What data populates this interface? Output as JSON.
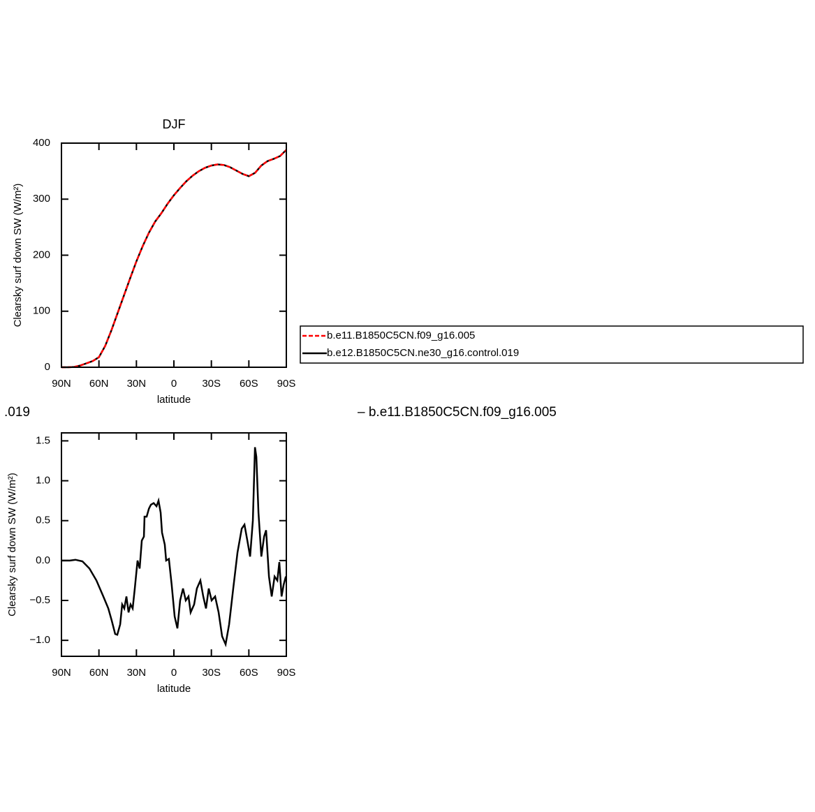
{
  "chart_data": [
    {
      "type": "line",
      "title": "DJF",
      "xlabel": "latitude",
      "ylabel": "Clearsky surf down SW (W/m²)",
      "x": [
        90,
        85,
        80,
        75,
        70,
        65,
        60,
        55,
        50,
        45,
        40,
        35,
        30,
        25,
        20,
        15,
        10,
        5,
        0,
        -5,
        -10,
        -15,
        -20,
        -25,
        -30,
        -35,
        -40,
        -45,
        -50,
        -55,
        -60,
        -65,
        -70,
        -75,
        -80,
        -85,
        -90
      ],
      "series": [
        {
          "name": "b.e12.B1850C5CN.ne30_g16.control.019",
          "color": "#000000",
          "line_style": "solid",
          "values": [
            0,
            0,
            0.5,
            3,
            7,
            11,
            18,
            38,
            66,
            97,
            128,
            159,
            189,
            216,
            240,
            260,
            275,
            292,
            307,
            320,
            332,
            342,
            350,
            356,
            360,
            362,
            361,
            357,
            351,
            345,
            341,
            347,
            360,
            368,
            372,
            377,
            388
          ]
        },
        {
          "name": "b.e11.B1850C5CN.f09_g16.005",
          "color": "#ff0000",
          "line_style": "dashed",
          "values": [
            0,
            0,
            0.5,
            3,
            7,
            11,
            18,
            38,
            66,
            97,
            128,
            159,
            189,
            216,
            240,
            260,
            275,
            292,
            307,
            320,
            332,
            342,
            350,
            356,
            360,
            362,
            361,
            357,
            351,
            345,
            341,
            347,
            360,
            368,
            372,
            377,
            388
          ]
        }
      ],
      "xlim": [
        90,
        -90
      ],
      "xticks": [
        {
          "value": 90,
          "label": "90N"
        },
        {
          "value": 60,
          "label": "60N"
        },
        {
          "value": 30,
          "label": "30N"
        },
        0,
        {
          "value": -30,
          "label": "30S"
        },
        {
          "value": -60,
          "label": "60S"
        },
        {
          "value": -90,
          "label": "90S"
        }
      ],
      "ylim": [
        0,
        400
      ],
      "yticks": [
        0,
        100,
        200,
        300,
        400
      ]
    },
    {
      "type": "line",
      "xlabel": "latitude",
      "ylabel": "Clearsky surf down SW (W/m²)",
      "x": [
        90,
        83.3,
        78.8,
        73.2,
        67.6,
        62,
        56.5,
        52.5,
        49.8,
        47,
        45.3,
        43,
        41.4,
        39.7,
        38,
        36.3,
        34.7,
        33,
        31.3,
        29.1,
        27.4,
        25.7,
        24,
        23.5,
        21.8,
        20,
        18.4,
        16.2,
        13.9,
        12.3,
        10.6,
        9.5,
        7.3,
        6.2,
        4,
        1.8,
        -0.6,
        -2.8,
        -5,
        -7.3,
        -9.5,
        -11.7,
        -13.4,
        -16.2,
        -18.4,
        -21.2,
        -23.5,
        -25.7,
        -27.9,
        -30.2,
        -33,
        -35.8,
        -38.6,
        -41.4,
        -44.2,
        -47.5,
        -50.9,
        -54.3,
        -56.5,
        -58.8,
        -61,
        -63.2,
        -64.9,
        -66,
        -67.7,
        -70,
        -72.2,
        -73.8,
        -76.1,
        -78.3,
        -80.6,
        -82.8,
        -84.4,
        -86.2,
        -87.9,
        -89.6
      ],
      "series": [
        {
          "color": "#000000",
          "line_style": "solid",
          "values": [
            0,
            0,
            0.01,
            -0.01,
            -0.1,
            -0.25,
            -0.45,
            -0.6,
            -0.75,
            -0.92,
            -0.93,
            -0.8,
            -0.55,
            -0.6,
            -0.45,
            -0.65,
            -0.55,
            -0.6,
            -0.35,
            0,
            -0.1,
            0.25,
            0.3,
            0.55,
            0.55,
            0.65,
            0.7,
            0.72,
            0.68,
            0.75,
            0.6,
            0.35,
            0.2,
            0,
            0.02,
            -0.3,
            -0.7,
            -0.85,
            -0.5,
            -0.35,
            -0.5,
            -0.45,
            -0.65,
            -0.55,
            -0.35,
            -0.25,
            -0.45,
            -0.6,
            -0.35,
            -0.5,
            -0.45,
            -0.65,
            -0.95,
            -1.05,
            -0.8,
            -0.35,
            0.1,
            0.4,
            0.45,
            0.25,
            0.05,
            0.5,
            1.42,
            1.3,
            0.6,
            0.05,
            0.3,
            0.38,
            -0.2,
            -0.45,
            -0.2,
            -0.25,
            -0.02,
            -0.45,
            -0.3,
            -0.2
          ]
        }
      ],
      "xlim": [
        90,
        -90
      ],
      "xticks": [
        {
          "value": 90,
          "label": "90N"
        },
        {
          "value": 60,
          "label": "60N"
        },
        {
          "value": 30,
          "label": "30N"
        },
        0,
        {
          "value": -30,
          "label": "30S"
        },
        {
          "value": -60,
          "label": "60S"
        },
        {
          "value": -90,
          "label": "90S"
        }
      ],
      "ylim": [
        -1.2,
        1.6
      ],
      "yticks": [
        {
          "value": -1,
          "label": "−1.0"
        },
        {
          "value": -0.5,
          "label": "−0.5"
        },
        {
          "value": 0,
          "label": "0.0"
        },
        0.5,
        {
          "value": 1,
          "label": "1.0"
        },
        1.5
      ]
    }
  ],
  "annotations": [
    ".019",
    "– b.e11.B1850C5CN.f09_g16.005"
  ]
}
